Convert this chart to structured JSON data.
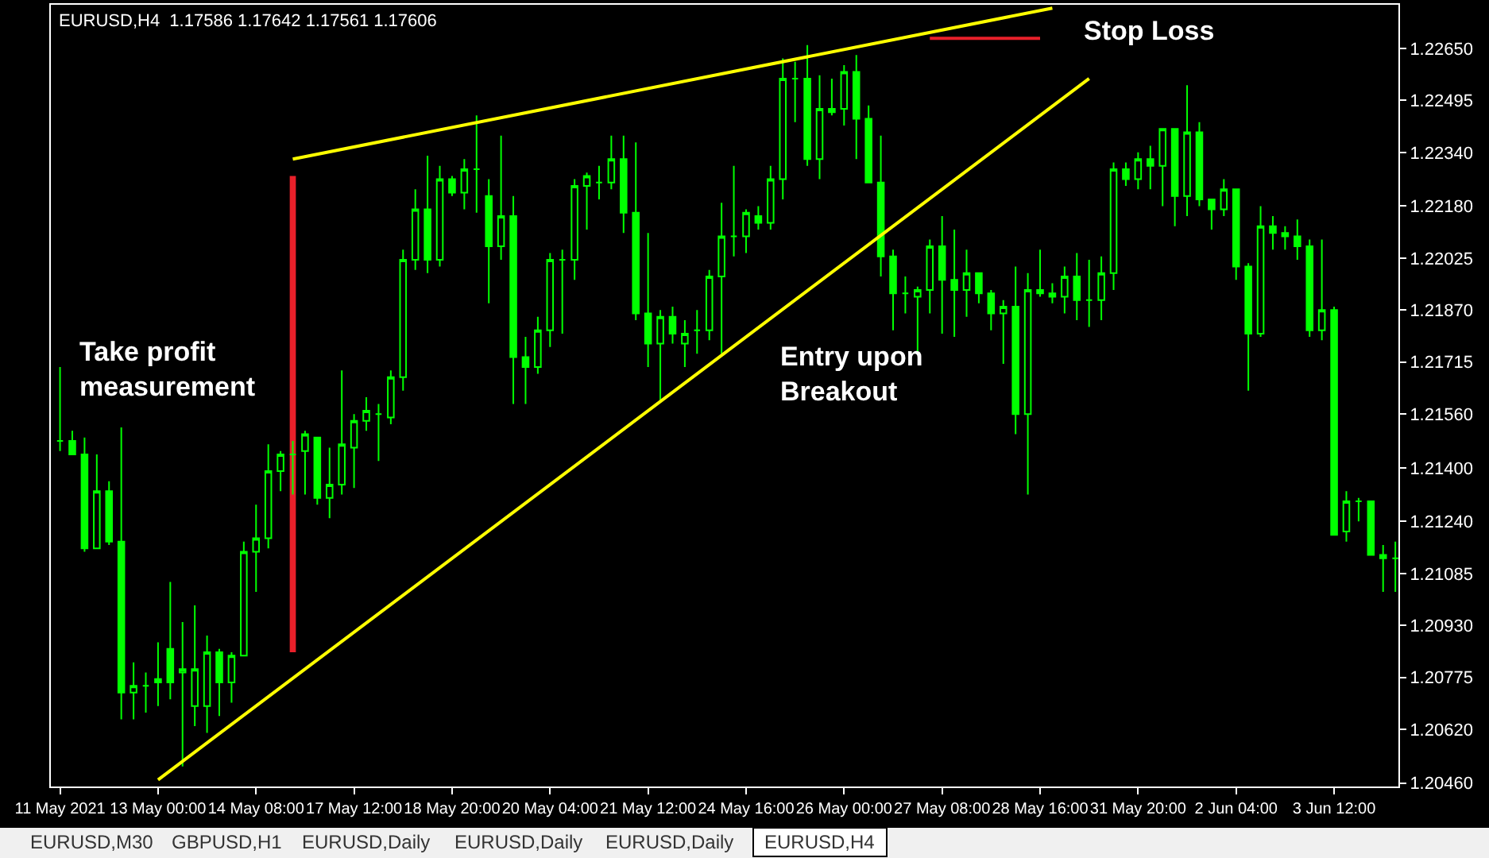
{
  "chart_data": {
    "type": "candlestick",
    "title": "EURUSD,H4  1.17586 1.17642 1.17561 1.17606",
    "color": "#00ff00",
    "categories": [
      "11 May 2021",
      null,
      null,
      null,
      null,
      null,
      null,
      null,
      "13 May 00:00",
      null,
      null,
      null,
      null,
      null,
      null,
      null,
      "14 May 08:00",
      null,
      null,
      null,
      null,
      null,
      null,
      null,
      "17 May 12:00",
      null,
      null,
      null,
      null,
      null,
      null,
      null,
      "18 May 20:00",
      null,
      null,
      null,
      null,
      null,
      null,
      null,
      "20 May 04:00",
      null,
      null,
      null,
      null,
      null,
      null,
      null,
      "21 May 12:00",
      null,
      null,
      null,
      null,
      null,
      null,
      null,
      "24 May 16:00",
      null,
      null,
      null,
      null,
      null,
      null,
      null,
      "26 May 00:00",
      null,
      null,
      null,
      null,
      null,
      null,
      null,
      "27 May 08:00",
      null,
      null,
      null,
      null,
      null,
      null,
      null,
      "28 May 16:00",
      null,
      null,
      null,
      null,
      null,
      null,
      null,
      "31 May 20:00",
      null,
      null,
      null,
      null,
      null,
      null,
      null,
      "2 Jun 04:00",
      null,
      null,
      null,
      null,
      null,
      null,
      null,
      "3 Jun 12:00",
      null,
      null,
      null,
      null,
      null
    ],
    "ohlc": [
      [
        1.2148,
        1.217,
        1.2145,
        1.2148
      ],
      [
        1.2148,
        1.2151,
        1.2144,
        1.2144
      ],
      [
        1.2144,
        1.2149,
        1.2115,
        1.2116
      ],
      [
        1.2116,
        1.2144,
        1.2116,
        1.2133
      ],
      [
        1.2133,
        1.2136,
        1.2117,
        1.2118
      ],
      [
        1.2118,
        1.2152,
        1.2065,
        1.2073
      ],
      [
        1.2073,
        1.2082,
        1.2065,
        1.2075
      ],
      [
        1.2075,
        1.2079,
        1.2067,
        1.2075
      ],
      [
        1.2077,
        1.2088,
        1.2069,
        1.2076
      ],
      [
        1.2086,
        1.2106,
        1.2071,
        1.2076
      ],
      [
        1.2079,
        1.2094,
        1.2051,
        1.208
      ],
      [
        1.2069,
        1.2099,
        1.2063,
        1.208
      ],
      [
        1.2069,
        1.209,
        1.2061,
        1.2085
      ],
      [
        1.2085,
        1.2086,
        1.2066,
        1.2076
      ],
      [
        1.2076,
        1.2085,
        1.207,
        1.2084
      ],
      [
        1.2084,
        1.2118,
        1.2084,
        1.2115
      ],
      [
        1.2115,
        1.2129,
        1.2103,
        1.2119
      ],
      [
        1.2119,
        1.2147,
        1.2116,
        1.2139
      ],
      [
        1.2139,
        1.2145,
        1.2133,
        1.2144
      ],
      [
        1.2144,
        1.2148,
        1.2132,
        1.2144
      ],
      [
        1.2145,
        1.2151,
        1.2132,
        1.215
      ],
      [
        1.2149,
        1.2149,
        1.2129,
        1.2131
      ],
      [
        1.2131,
        1.2146,
        1.2125,
        1.2135
      ],
      [
        1.2135,
        1.2169,
        1.2132,
        1.2147
      ],
      [
        1.2146,
        1.2156,
        1.2134,
        1.2154
      ],
      [
        1.2154,
        1.2161,
        1.2151,
        1.2157
      ],
      [
        1.2156,
        1.2159,
        1.2142,
        1.2156
      ],
      [
        1.2155,
        1.2169,
        1.2153,
        1.2167
      ],
      [
        1.2167,
        1.2205,
        1.2163,
        1.2202
      ],
      [
        1.2202,
        1.2223,
        1.2199,
        1.2217
      ],
      [
        1.2217,
        1.2233,
        1.2198,
        1.2202
      ],
      [
        1.2202,
        1.223,
        1.22,
        1.2226
      ],
      [
        1.2226,
        1.2227,
        1.2221,
        1.2222
      ],
      [
        1.2222,
        1.2232,
        1.2217,
        1.2229
      ],
      [
        1.2229,
        1.2245,
        1.2216,
        1.2229
      ],
      [
        1.2221,
        1.2226,
        1.2189,
        1.2206
      ],
      [
        1.2206,
        1.2239,
        1.2202,
        1.2215
      ],
      [
        1.2215,
        1.2221,
        1.2159,
        1.2173
      ],
      [
        1.2173,
        1.2179,
        1.2159,
        1.217
      ],
      [
        1.217,
        1.2185,
        1.2168,
        1.2181
      ],
      [
        1.2181,
        1.2204,
        1.2176,
        1.2202
      ],
      [
        1.2202,
        1.2205,
        1.218,
        1.2202
      ],
      [
        1.2202,
        1.2226,
        1.2196,
        1.2224
      ],
      [
        1.2224,
        1.2228,
        1.2211,
        1.2227
      ],
      [
        1.2225,
        1.223,
        1.222,
        1.2225
      ],
      [
        1.2225,
        1.2239,
        1.2223,
        1.2232
      ],
      [
        1.2232,
        1.2239,
        1.221,
        1.2216
      ],
      [
        1.2216,
        1.2237,
        1.2184,
        1.2186
      ],
      [
        1.2186,
        1.221,
        1.217,
        1.2177
      ],
      [
        1.2177,
        1.2187,
        1.216,
        1.2185
      ],
      [
        1.2185,
        1.2188,
        1.2177,
        1.218
      ],
      [
        1.2177,
        1.2184,
        1.217,
        1.218
      ],
      [
        1.2181,
        1.2187,
        1.2174,
        1.2181
      ],
      [
        1.2181,
        1.2199,
        1.2178,
        1.2197
      ],
      [
        1.2197,
        1.2219,
        1.2174,
        1.2209
      ],
      [
        1.2209,
        1.223,
        1.2203,
        1.2209
      ],
      [
        1.2209,
        1.2217,
        1.2204,
        1.2216
      ],
      [
        1.2215,
        1.2218,
        1.2211,
        1.2213
      ],
      [
        1.2213,
        1.223,
        1.2211,
        1.2226
      ],
      [
        1.2226,
        1.2262,
        1.222,
        1.2256
      ],
      [
        1.2256,
        1.2261,
        1.2243,
        1.2256
      ],
      [
        1.2256,
        1.2266,
        1.223,
        1.2232
      ],
      [
        1.2232,
        1.2257,
        1.2226,
        1.2247
      ],
      [
        1.2247,
        1.2256,
        1.2245,
        1.2246
      ],
      [
        1.2247,
        1.226,
        1.2242,
        1.2258
      ],
      [
        1.2258,
        1.2263,
        1.2232,
        1.2244
      ],
      [
        1.2244,
        1.2248,
        1.2225,
        1.2225
      ],
      [
        1.2225,
        1.2239,
        1.2197,
        1.2203
      ],
      [
        1.2203,
        1.2205,
        1.2181,
        1.2192
      ],
      [
        1.2192,
        1.2197,
        1.2186,
        1.2192
      ],
      [
        1.2191,
        1.2194,
        1.2174,
        1.2193
      ],
      [
        1.2193,
        1.2208,
        1.2186,
        1.2206
      ],
      [
        1.2206,
        1.2215,
        1.218,
        1.2196
      ],
      [
        1.2196,
        1.2211,
        1.2179,
        1.2193
      ],
      [
        1.2193,
        1.2205,
        1.2185,
        1.2198
      ],
      [
        1.2198,
        1.2198,
        1.2189,
        1.2192
      ],
      [
        1.2192,
        1.2193,
        1.2181,
        1.2186
      ],
      [
        1.2186,
        1.219,
        1.2171,
        1.2188
      ],
      [
        1.2188,
        1.22,
        1.215,
        1.2156
      ],
      [
        1.2156,
        1.2198,
        1.2132,
        1.2193
      ],
      [
        1.2193,
        1.2205,
        1.2191,
        1.2192
      ],
      [
        1.2192,
        1.2195,
        1.2189,
        1.2191
      ],
      [
        1.2191,
        1.22,
        1.2186,
        1.2197
      ],
      [
        1.2197,
        1.2204,
        1.2184,
        1.219
      ],
      [
        1.219,
        1.2202,
        1.2182,
        1.219
      ],
      [
        1.219,
        1.2203,
        1.2184,
        1.2198
      ],
      [
        1.2198,
        1.2231,
        1.2193,
        1.2229
      ],
      [
        1.2229,
        1.2231,
        1.2224,
        1.2226
      ],
      [
        1.2226,
        1.2234,
        1.2223,
        1.2232
      ],
      [
        1.2232,
        1.2236,
        1.2223,
        1.223
      ],
      [
        1.223,
        1.2241,
        1.2218,
        1.2241
      ],
      [
        1.2241,
        1.2241,
        1.2212,
        1.2221
      ],
      [
        1.2221,
        1.2254,
        1.2215,
        1.224
      ],
      [
        1.224,
        1.2243,
        1.2218,
        1.222
      ],
      [
        1.222,
        1.222,
        1.2211,
        1.2217
      ],
      [
        1.2217,
        1.2226,
        1.2215,
        1.2223
      ],
      [
        1.2223,
        1.2223,
        1.2196,
        1.22
      ],
      [
        1.22,
        1.2201,
        1.2163,
        1.218
      ],
      [
        1.218,
        1.2218,
        1.2179,
        1.2212
      ],
      [
        1.2212,
        1.2215,
        1.2205,
        1.221
      ],
      [
        1.221,
        1.2212,
        1.2205,
        1.2209
      ],
      [
        1.2209,
        1.2214,
        1.2202,
        1.2206
      ],
      [
        1.2206,
        1.2208,
        1.2179,
        1.2181
      ],
      [
        1.2181,
        1.2208,
        1.2178,
        1.2187
      ],
      [
        1.2187,
        1.2188,
        1.212,
        1.212
      ],
      [
        1.2121,
        1.2133,
        1.2118,
        1.213
      ],
      [
        1.213,
        1.2131,
        1.2124,
        1.213
      ],
      [
        1.213,
        1.213,
        1.2114,
        1.2114
      ],
      [
        1.2114,
        1.2117,
        1.2103,
        1.2113
      ],
      [
        1.2113,
        1.2118,
        1.2103,
        1.2113
      ]
    ],
    "series": [
      {
        "type": "line",
        "color": "#ffff00",
        "values": [
          null,
          null,
          null,
          null,
          null,
          null,
          null,
          null,
          null,
          null,
          null,
          null,
          null,
          null,
          null,
          null,
          null,
          null,
          null,
          1.2232,
          null,
          null,
          null,
          null,
          null,
          null,
          null,
          null,
          null,
          null,
          null,
          null,
          null,
          null,
          null,
          null,
          null,
          null,
          null,
          null,
          null,
          null,
          null,
          null,
          null,
          null,
          null,
          null,
          null,
          null,
          null,
          null,
          null,
          null,
          null,
          null,
          null,
          null,
          null,
          null,
          null,
          null,
          null,
          null,
          null,
          null,
          null,
          null,
          null,
          null,
          null,
          null,
          null,
          null,
          null,
          null,
          null,
          null,
          null,
          null,
          null,
          1.2277,
          null,
          null,
          null,
          null,
          null,
          null,
          null,
          null,
          null,
          null,
          null,
          null,
          null,
          null,
          null,
          null,
          null,
          null,
          null,
          null,
          null,
          null,
          null,
          null,
          null,
          null,
          null,
          null
        ]
      },
      {
        "type": "line",
        "color": "#ffff00",
        "values": [
          null,
          null,
          null,
          null,
          null,
          null,
          null,
          null,
          1.2047,
          null,
          null,
          null,
          null,
          null,
          null,
          null,
          null,
          null,
          null,
          null,
          null,
          null,
          null,
          null,
          null,
          null,
          null,
          null,
          null,
          null,
          null,
          null,
          null,
          null,
          null,
          null,
          null,
          null,
          null,
          null,
          null,
          null,
          null,
          null,
          null,
          null,
          null,
          null,
          null,
          null,
          null,
          null,
          null,
          null,
          null,
          null,
          null,
          null,
          null,
          null,
          null,
          null,
          null,
          null,
          null,
          null,
          null,
          null,
          null,
          null,
          null,
          null,
          null,
          null,
          null,
          null,
          null,
          null,
          null,
          null,
          null,
          null,
          null,
          null,
          1.2256,
          null,
          null,
          null,
          null,
          null,
          null,
          null,
          null,
          null,
          null,
          null,
          null,
          null,
          null,
          null,
          null,
          null,
          null,
          null,
          null,
          null,
          null,
          null,
          null,
          null
        ]
      },
      {
        "type": "line",
        "color": "#e8202a",
        "values": [
          null,
          null,
          null,
          null,
          null,
          null,
          null,
          null,
          null,
          null,
          null,
          null,
          null,
          null,
          null,
          null,
          null,
          null,
          null,
          null,
          null,
          null,
          null,
          null,
          null,
          null,
          null,
          null,
          null,
          null,
          null,
          null,
          null,
          null,
          null,
          null,
          null,
          null,
          null,
          null,
          null,
          null,
          null,
          null,
          null,
          null,
          null,
          null,
          null,
          null,
          null,
          null,
          null,
          null,
          null,
          null,
          null,
          null,
          null,
          null,
          null,
          null,
          null,
          null,
          null,
          null,
          null,
          null,
          null,
          null,
          null,
          1.2268,
          1.2268,
          1.2268,
          1.2268,
          1.2268,
          1.2268,
          1.2268,
          1.2268,
          1.2268,
          1.2268,
          null,
          null,
          null,
          null,
          null,
          null,
          null,
          null,
          null,
          null,
          null,
          null,
          null,
          null,
          null,
          null,
          null,
          null,
          null,
          null,
          null,
          null,
          null,
          null,
          null,
          null,
          null,
          null,
          null
        ]
      },
      {
        "type": "bar",
        "color": "#e8202a",
        "values": [
          null,
          null,
          null,
          null,
          null,
          null,
          null,
          null,
          null,
          null,
          null,
          null,
          null,
          null,
          null,
          null,
          null,
          null,
          null,
          0.0142,
          null,
          null,
          null,
          null,
          null,
          null,
          null,
          null,
          null,
          null,
          null,
          null,
          null,
          null,
          null,
          null,
          null,
          null,
          null,
          null,
          null,
          null,
          null,
          null,
          null,
          null,
          null,
          null,
          null,
          null,
          null,
          null,
          null,
          null,
          null,
          null,
          null,
          null,
          null,
          null,
          null,
          null,
          null,
          null,
          null,
          null,
          null,
          null,
          null,
          null,
          null,
          null,
          null,
          null,
          null,
          null,
          null,
          null,
          null,
          null,
          null,
          null,
          null,
          null,
          null,
          null,
          null,
          null,
          null,
          null,
          null,
          null,
          null,
          null,
          null,
          null,
          null,
          null,
          null,
          null,
          null,
          null,
          null,
          null,
          null,
          null,
          null,
          null,
          null,
          null
        ],
        "base": [
          null,
          null,
          null,
          null,
          null,
          null,
          null,
          null,
          null,
          null,
          null,
          null,
          null,
          null,
          null,
          null,
          null,
          null,
          null,
          1.2085,
          null,
          null,
          null,
          null,
          null,
          null,
          null,
          null,
          null,
          null,
          null,
          null,
          null,
          null,
          null,
          null,
          null,
          null,
          null,
          null,
          null,
          null,
          null,
          null,
          null,
          null,
          null,
          null,
          null,
          null,
          null,
          null,
          null,
          null,
          null,
          null,
          null,
          null,
          null,
          null,
          null,
          null,
          null,
          null,
          null,
          null,
          null,
          null,
          null,
          null,
          null,
          null,
          null,
          null,
          null,
          null,
          null,
          null,
          null,
          null,
          null,
          null,
          null,
          null,
          null,
          null,
          null,
          null,
          null,
          null,
          null,
          null,
          null,
          null,
          null,
          null,
          null,
          null,
          null,
          null,
          null,
          null,
          null,
          null,
          null,
          null,
          null,
          null,
          null,
          null
        ]
      }
    ],
    "ylim": [
      1.2045,
      1.2278
    ],
    "yticks": [
      {
        "value": 1.2046,
        "label": "1.20460"
      },
      {
        "value": 1.2062,
        "label": "1.20620"
      },
      {
        "value": 1.20775,
        "label": "1.20775"
      },
      {
        "value": 1.2093,
        "label": "1.20930"
      },
      {
        "value": 1.21085,
        "label": "1.21085"
      },
      {
        "value": 1.2124,
        "label": "1.21240"
      },
      {
        "value": 1.214,
        "label": "1.21400"
      },
      {
        "value": 1.2156,
        "label": "1.21560"
      },
      {
        "value": 1.21715,
        "label": "1.21715"
      },
      {
        "value": 1.2187,
        "label": "1.21870"
      },
      {
        "value": 1.22025,
        "label": "1.22025"
      },
      {
        "value": 1.2218,
        "label": "1.22180"
      },
      {
        "value": 1.2234,
        "label": "1.22340"
      },
      {
        "value": 1.22495,
        "label": "1.22495"
      },
      {
        "value": 1.2265,
        "label": "1.22650"
      }
    ],
    "annotations": [
      "Take profit\nmeasurement",
      "Entry upon\nBreakout",
      "Stop Loss",
      "EURUSD,M30",
      "GBPUSD,H1",
      "EURUSD,Daily",
      "EURUSD,Daily",
      "EURUSD,Daily",
      "EURUSD,H4"
    ]
  }
}
